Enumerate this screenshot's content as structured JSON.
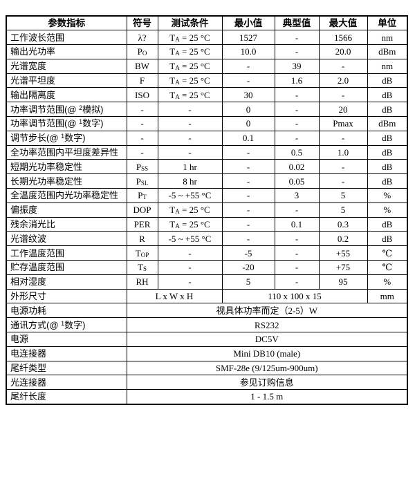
{
  "document": {
    "type": "specification-table",
    "background_color": "#ffffff",
    "border_color": "#000000",
    "text_color": "#000000"
  },
  "table": {
    "headers": [
      "参数指标",
      "符号",
      "测试条件",
      "最小值",
      "典型值",
      "最大值",
      "单位"
    ],
    "rows": [
      [
        "工作波长范围",
        "λ?",
        "T_{A} = 25 °C",
        "1527",
        "-",
        "1566",
        "nm"
      ],
      [
        "输出光功率",
        "P_{O}",
        "T_{A} = 25 °C",
        "10.0",
        "-",
        "20.0",
        "dBm"
      ],
      [
        "光谱宽度",
        "BW",
        "T_{A} = 25 °C",
        "-",
        "39",
        "-",
        "nm"
      ],
      [
        "光谱平坦度",
        "F",
        "T_{A} = 25 °C",
        "-",
        "1.6",
        "2.0",
        "dB"
      ],
      [
        "输出隔离度",
        "ISO",
        "T_{A} = 25 °C",
        "30",
        "-",
        "-",
        "dB"
      ],
      [
        "功率调节范围(@ ^{2}模拟)",
        "-",
        "-",
        "0",
        "-",
        "20",
        "dB"
      ],
      [
        "功率调节范围(@ ^{1}数字)",
        "-",
        "-",
        "0",
        "-",
        "Pmax",
        "dBm"
      ],
      [
        "调节步长(@ ^{1}数字)",
        "-",
        "-",
        "0.1",
        "-",
        "-",
        "dB"
      ],
      [
        "全功率范围内平坦度差异性",
        "-",
        "-",
        "-",
        "0.5",
        "1.0",
        "dB"
      ],
      [
        "短期光功率稳定性",
        "P_{SS}",
        "1 hr",
        "-",
        "0.02",
        "-",
        "dB"
      ],
      [
        "长期光功率稳定性",
        "P_{SL}",
        "8 hr",
        "-",
        "0.05",
        "-",
        "dB"
      ],
      [
        "全温度范围内光功率稳定性",
        "P_{T}",
        "-5 ~ +55 °C",
        "-",
        "3",
        "5",
        "%"
      ],
      [
        "偏振度",
        "DOP",
        "T_{A} = 25 °C",
        "-",
        "-",
        "5",
        "%"
      ],
      [
        "残余消光比",
        "PER",
        "T_{A} = 25 °C",
        "-",
        "0.1",
        "0.3",
        "dB"
      ],
      [
        "光谱纹波",
        "R",
        "-5 ~ +55 °C",
        "-",
        "-",
        "0.2",
        "dB"
      ],
      [
        "工作温度范围",
        "T_{OP}",
        "-",
        "-5",
        "-",
        "+55",
        "℃"
      ],
      [
        "贮存温度范围",
        "T_{S}",
        "-",
        "-20",
        "-",
        "+75",
        "℃"
      ],
      [
        "相对湿度",
        "RH",
        "-",
        "5",
        "-",
        "95",
        "%"
      ],
      [
        "外形尺寸",
        {
          "text": "L x W x H",
          "span": 2
        },
        {
          "text": "110 x 100 x 15",
          "span": 3
        },
        "mm"
      ],
      [
        "电源功耗",
        {
          "text": "视具体功率而定（2-5）W",
          "span": 6
        }
      ],
      [
        "通讯方式(@ ^{1}数字)",
        {
          "text": "RS232",
          "span": 6
        }
      ],
      [
        "电源",
        {
          "text": "DC5V",
          "span": 6
        }
      ],
      [
        "电连接器",
        {
          "text": "Mini DB10 (male)",
          "span": 6
        }
      ],
      [
        "尾纤类型",
        {
          "text": "SMF-28e (9/125um-900um)",
          "span": 6
        }
      ],
      [
        "光连接器",
        {
          "text": "参见订购信息",
          "span": 6
        }
      ],
      [
        "尾纤长度",
        {
          "text": "1 - 1.5 m",
          "span": 6
        }
      ]
    ]
  }
}
